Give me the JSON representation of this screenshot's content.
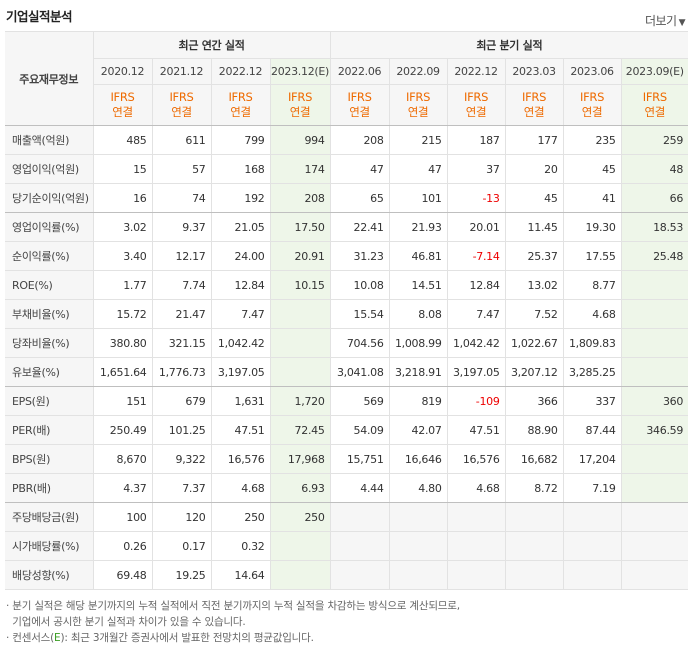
{
  "header": {
    "title": "기업실적분석",
    "more_label": "더보기",
    "more_arrow": "▼"
  },
  "table": {
    "corner_label": "주요재무정보",
    "annual_group": "최근 연간 실적",
    "quarter_group": "최근 분기 실적",
    "annual_periods": [
      "2020.12",
      "2021.12",
      "2022.12",
      "2023.12(E)"
    ],
    "quarter_periods": [
      "2022.06",
      "2022.09",
      "2022.12",
      "2023.03",
      "2023.06",
      "2023.09(E)"
    ],
    "ifrs_line1": "IFRS",
    "ifrs_line2": "연결",
    "rows": [
      {
        "label": "매출액(억원)",
        "values": [
          "485",
          "611",
          "799",
          "994",
          "208",
          "215",
          "187",
          "177",
          "235",
          "259"
        ]
      },
      {
        "label": "영업이익(억원)",
        "values": [
          "15",
          "57",
          "168",
          "174",
          "47",
          "47",
          "37",
          "20",
          "45",
          "48"
        ]
      },
      {
        "label": "당기순이익(억원)",
        "values": [
          "16",
          "74",
          "192",
          "208",
          "65",
          "101",
          "-13",
          "45",
          "41",
          "66"
        ]
      },
      {
        "label": "영업이익률(%)",
        "values": [
          "3.02",
          "9.37",
          "21.05",
          "17.50",
          "22.41",
          "21.93",
          "20.01",
          "11.45",
          "19.30",
          "18.53"
        ]
      },
      {
        "label": "순이익률(%)",
        "values": [
          "3.40",
          "12.17",
          "24.00",
          "20.91",
          "31.23",
          "46.81",
          "-7.14",
          "25.37",
          "17.55",
          "25.48"
        ]
      },
      {
        "label": "ROE(%)",
        "values": [
          "1.77",
          "7.74",
          "12.84",
          "10.15",
          "10.08",
          "14.51",
          "12.84",
          "13.02",
          "8.77",
          ""
        ]
      },
      {
        "label": "부채비율(%)",
        "values": [
          "15.72",
          "21.47",
          "7.47",
          "",
          "15.54",
          "8.08",
          "7.47",
          "7.52",
          "4.68",
          ""
        ]
      },
      {
        "label": "당좌비율(%)",
        "values": [
          "380.80",
          "321.15",
          "1,042.42",
          "",
          "704.56",
          "1,008.99",
          "1,042.42",
          "1,022.67",
          "1,809.83",
          ""
        ]
      },
      {
        "label": "유보율(%)",
        "values": [
          "1,651.64",
          "1,776.73",
          "3,197.05",
          "",
          "3,041.08",
          "3,218.91",
          "3,197.05",
          "3,207.12",
          "3,285.25",
          ""
        ]
      },
      {
        "label": "EPS(원)",
        "values": [
          "151",
          "679",
          "1,631",
          "1,720",
          "569",
          "819",
          "-109",
          "366",
          "337",
          "360"
        ]
      },
      {
        "label": "PER(배)",
        "values": [
          "250.49",
          "101.25",
          "47.51",
          "72.45",
          "54.09",
          "42.07",
          "47.51",
          "88.90",
          "87.44",
          "346.59"
        ]
      },
      {
        "label": "BPS(원)",
        "values": [
          "8,670",
          "9,322",
          "16,576",
          "17,968",
          "15,751",
          "16,646",
          "16,576",
          "16,682",
          "17,204",
          ""
        ]
      },
      {
        "label": "PBR(배)",
        "values": [
          "4.37",
          "7.37",
          "4.68",
          "6.93",
          "4.44",
          "4.80",
          "4.68",
          "8.72",
          "7.19",
          ""
        ]
      },
      {
        "label": "주당배당금(원)",
        "values": [
          "100",
          "120",
          "250",
          "250",
          "",
          "",
          "",
          "",
          "",
          ""
        ]
      },
      {
        "label": "시가배당률(%)",
        "values": [
          "0.26",
          "0.17",
          "0.32",
          "",
          "",
          "",
          "",
          "",
          "",
          ""
        ]
      },
      {
        "label": "배당성향(%)",
        "values": [
          "69.48",
          "19.25",
          "14.64",
          "",
          "",
          "",
          "",
          "",
          "",
          ""
        ]
      }
    ]
  },
  "notes": {
    "line1": "· 분기 실적은 해당 분기까지의 누적 실적에서 직전 분기까지의 누적 실적을 차감하는 방식으로 계산되므로,",
    "line2": "  기업에서 공시한 분기 실적과 차이가 있을 수 있습니다.",
    "line3_a": "· 컨센서스(",
    "line3_e": "E",
    "line3_b": "): 최근 3개월간 증권사에서 발표한 전망치의 평균값입니다."
  }
}
